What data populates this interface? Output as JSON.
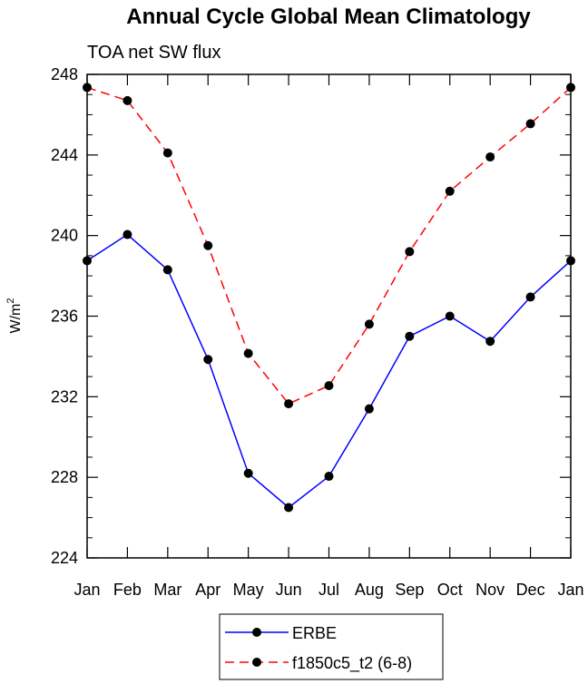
{
  "chart_data": {
    "type": "line",
    "title": "Annual Cycle Global Mean Climatology",
    "subtitle": "TOA net SW flux",
    "xlabel": "",
    "ylabel_base": "W/m",
    "ylabel_sup": "2",
    "categories": [
      "Jan",
      "Feb",
      "Mar",
      "Apr",
      "May",
      "Jun",
      "Jul",
      "Aug",
      "Sep",
      "Oct",
      "Nov",
      "Dec",
      "Jan"
    ],
    "ylim": [
      224,
      248
    ],
    "yticks": [
      224,
      228,
      232,
      236,
      240,
      244,
      248
    ],
    "grid": false,
    "legend_position": "bottom-center",
    "series": [
      {
        "name": "ERBE",
        "color": "#0000ff",
        "dash": "solid",
        "values": [
          238.75,
          240.05,
          238.3,
          233.85,
          228.2,
          226.5,
          228.05,
          231.4,
          235.0,
          236.0,
          234.75,
          236.95,
          238.75
        ]
      },
      {
        "name": "f1850c5_t2 (6-8)",
        "color": "#ff0000",
        "dash": "dashed",
        "values": [
          247.35,
          246.7,
          244.1,
          239.5,
          234.15,
          231.65,
          232.55,
          235.6,
          239.2,
          242.2,
          243.9,
          245.55,
          247.35
        ]
      }
    ]
  }
}
